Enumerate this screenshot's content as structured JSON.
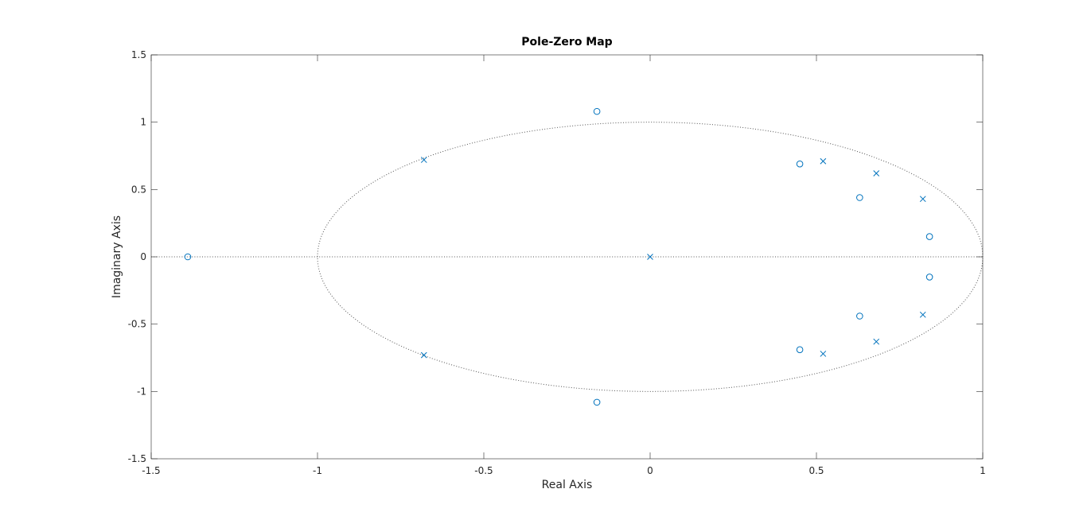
{
  "chart_data": {
    "type": "scatter",
    "title": "Pole-Zero Map",
    "xlabel": "Real Axis",
    "ylabel": "Imaginary Axis",
    "xlim": [
      -1.5,
      1
    ],
    "ylim": [
      -1.5,
      1.5
    ],
    "xticks": [
      -1.5,
      -1,
      -0.5,
      0,
      0.5,
      1
    ],
    "xtick_labels": [
      "-1.5",
      "-1",
      "-0.5",
      "0",
      "0.5",
      "1"
    ],
    "yticks": [
      -1.5,
      -1,
      -0.5,
      0,
      0.5,
      1,
      1.5
    ],
    "ytick_labels": [
      "-1.5",
      "-1",
      "-0.5",
      "0",
      "0.5",
      "1",
      "1.5"
    ],
    "grid": false,
    "unit_circle": true,
    "marker_color": "#0072BD",
    "series": [
      {
        "marker": "x",
        "points": [
          [
            -0.68,
            0.72
          ],
          [
            -0.68,
            -0.73
          ],
          [
            0.0,
            0.0
          ],
          [
            0.52,
            0.71
          ],
          [
            0.52,
            -0.72
          ],
          [
            0.68,
            0.62
          ],
          [
            0.68,
            -0.63
          ],
          [
            0.82,
            0.43
          ],
          [
            0.82,
            -0.43
          ]
        ]
      },
      {
        "marker": "o",
        "points": [
          [
            -1.39,
            0.0
          ],
          [
            -0.16,
            1.08
          ],
          [
            -0.16,
            -1.08
          ],
          [
            0.45,
            0.69
          ],
          [
            0.45,
            -0.69
          ],
          [
            0.63,
            0.44
          ],
          [
            0.63,
            -0.44
          ],
          [
            0.84,
            0.15
          ],
          [
            0.84,
            -0.15
          ]
        ]
      }
    ]
  }
}
